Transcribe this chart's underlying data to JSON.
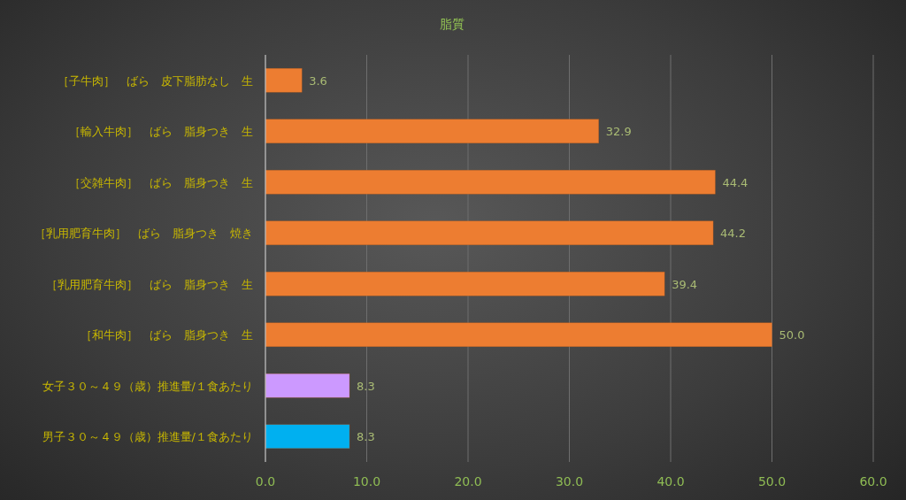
{
  "chart_data": {
    "type": "bar",
    "orientation": "horizontal",
    "title": "脂質",
    "categories": [
      "［子牛肉］　ばら　皮下脂肪なし　生",
      "［輸入牛肉］　ばら　脂身つき　生",
      "［交雑牛肉］　ばら　脂身つき　生",
      "［乳用肥育牛肉］　ばら　脂身つき　焼き",
      "［乳用肥育牛肉］　ばら　脂身つき　生",
      "［和牛肉］　ばら　脂身つき　生",
      "女子３０～４９（歳）推進量/１食あたり",
      "男子３０～４９（歳）推進量/１食あたり"
    ],
    "values": [
      3.6,
      32.9,
      44.4,
      44.2,
      39.4,
      50.0,
      8.3,
      8.3
    ],
    "value_labels": [
      "3.6",
      "32.9",
      "44.4",
      "44.2",
      "39.4",
      "50.0",
      "8.3",
      "8.3"
    ],
    "colors": [
      "#ed7d31",
      "#ed7d31",
      "#ed7d31",
      "#ed7d31",
      "#ed7d31",
      "#ed7d31",
      "#cc99ff",
      "#00b0f0"
    ],
    "xlim": [
      0,
      60
    ],
    "xticks": [
      {
        "value": 0,
        "label": "0.0"
      },
      {
        "value": 10,
        "label": "10.0"
      },
      {
        "value": 20,
        "label": "20.0"
      },
      {
        "value": 30,
        "label": "30.0"
      },
      {
        "value": 40,
        "label": "40.0"
      },
      {
        "value": 50,
        "label": "50.0"
      },
      {
        "value": 60,
        "label": "60.0"
      }
    ],
    "grid": "x"
  }
}
